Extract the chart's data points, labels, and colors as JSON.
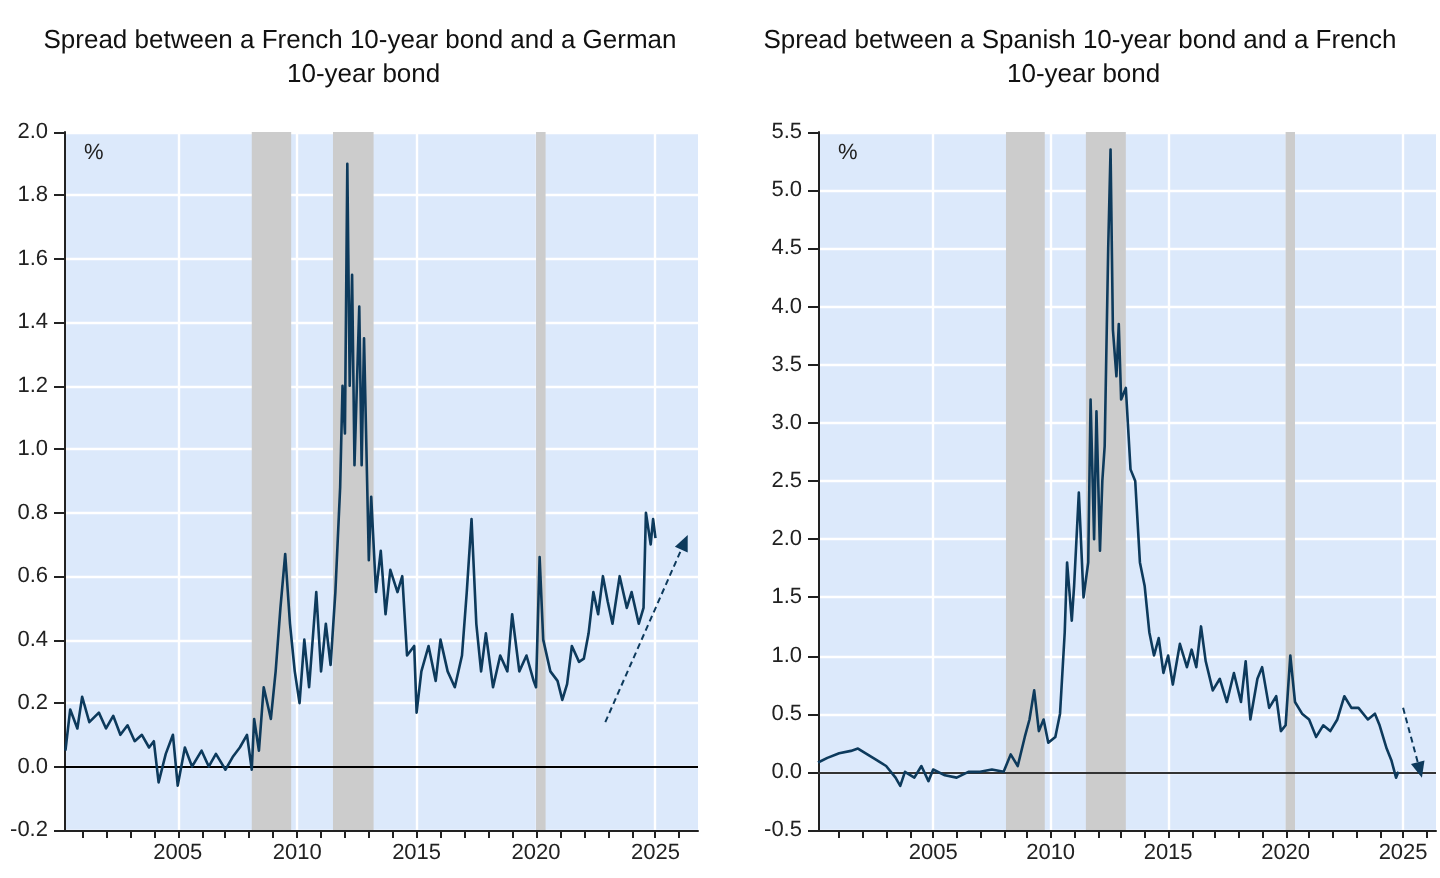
{
  "chart_data": [
    {
      "type": "line",
      "title": "Spread between a French 10-year bond and a German 10-year bond",
      "ylabel": "%",
      "xlim": [
        2000.24,
        2026.78
      ],
      "xticks": [
        {
          "value": 2001,
          "label": null
        },
        {
          "value": 2002,
          "label": null
        },
        {
          "value": 2003,
          "label": null
        },
        {
          "value": 2004,
          "label": null
        },
        2005,
        {
          "value": 2006,
          "label": null
        },
        {
          "value": 2007,
          "label": null
        },
        {
          "value": 2008,
          "label": null
        },
        {
          "value": 2009,
          "label": null
        },
        2010,
        {
          "value": 2011,
          "label": null
        },
        {
          "value": 2012,
          "label": null
        },
        {
          "value": 2013,
          "label": null
        },
        {
          "value": 2014,
          "label": null
        },
        2015,
        {
          "value": 2016,
          "label": null
        },
        {
          "value": 2017,
          "label": null
        },
        {
          "value": 2018,
          "label": null
        },
        {
          "value": 2019,
          "label": null
        },
        2020,
        {
          "value": 2021,
          "label": null
        },
        {
          "value": 2022,
          "label": null
        },
        {
          "value": 2023,
          "label": null
        },
        {
          "value": 2024,
          "label": null
        },
        2025,
        {
          "value": 2026,
          "label": null
        }
      ],
      "ylim": [
        -0.2,
        2.0
      ],
      "yticks": [
        -0.2,
        {
          "value": 0,
          "label": "0.0"
        },
        0.2,
        0.4,
        0.6,
        0.8,
        {
          "value": 1,
          "label": "1.0"
        },
        1.2,
        1.4,
        1.6,
        1.8,
        {
          "value": 2,
          "label": "2.0"
        }
      ],
      "grid": true,
      "marker": "none",
      "ref_lines": [
        {
          "axis": "y",
          "value": 0,
          "color": "#000000"
        }
      ],
      "bands": [
        {
          "axis": "x",
          "from": 2008.1,
          "to": 2009.75,
          "color": "#cccccc"
        },
        {
          "axis": "x",
          "from": 2011.5,
          "to": 2013.2,
          "color": "#cccccc"
        },
        {
          "axis": "x",
          "from": 2020.0,
          "to": 2020.4,
          "color": "#cccccc"
        }
      ],
      "series": [
        {
          "color": "#0d3a5c",
          "line_style": "solid",
          "x": [
            2000.3,
            2000.5,
            2000.8,
            2001.0,
            2001.3,
            2001.7,
            2002.0,
            2002.3,
            2002.6,
            2002.9,
            2003.2,
            2003.5,
            2003.8,
            2004.0,
            2004.2,
            2004.5,
            2004.8,
            2005.0,
            2005.3,
            2005.6,
            2006.0,
            2006.3,
            2006.6,
            2007.0,
            2007.3,
            2007.6,
            2007.9,
            2008.1,
            2008.2,
            2008.4,
            2008.6,
            2008.9,
            2009.1,
            2009.3,
            2009.5,
            2009.7,
            2009.9,
            2010.1,
            2010.3,
            2010.5,
            2010.8,
            2011.0,
            2011.2,
            2011.4,
            2011.6,
            2011.8,
            2011.9,
            2012.0,
            2012.1,
            2012.2,
            2012.3,
            2012.4,
            2012.6,
            2012.7,
            2012.8,
            2013.0,
            2013.1,
            2013.3,
            2013.5,
            2013.7,
            2013.9,
            2014.2,
            2014.4,
            2014.6,
            2014.9,
            2015.0,
            2015.2,
            2015.5,
            2015.8,
            2016.0,
            2016.3,
            2016.6,
            2016.9,
            2017.1,
            2017.3,
            2017.5,
            2017.7,
            2017.9,
            2018.2,
            2018.5,
            2018.8,
            2019.0,
            2019.3,
            2019.6,
            2019.9,
            2020.0,
            2020.15,
            2020.3,
            2020.6,
            2020.9,
            2021.1,
            2021.3,
            2021.5,
            2021.8,
            2022.0,
            2022.2,
            2022.4,
            2022.6,
            2022.8,
            2023.0,
            2023.2,
            2023.5,
            2023.8,
            2024.0,
            2024.3,
            2024.5,
            2024.6,
            2024.8,
            2024.9,
            2025.0
          ],
          "values": [
            0.05,
            0.18,
            0.12,
            0.22,
            0.14,
            0.17,
            0.12,
            0.16,
            0.1,
            0.13,
            0.08,
            0.1,
            0.06,
            0.08,
            -0.05,
            0.04,
            0.1,
            -0.06,
            0.06,
            0.0,
            0.05,
            0.0,
            0.04,
            -0.01,
            0.03,
            0.06,
            0.1,
            -0.01,
            0.15,
            0.05,
            0.25,
            0.15,
            0.3,
            0.5,
            0.67,
            0.45,
            0.3,
            0.2,
            0.4,
            0.25,
            0.55,
            0.3,
            0.45,
            0.32,
            0.55,
            0.88,
            1.2,
            1.05,
            1.9,
            1.2,
            1.55,
            0.95,
            1.45,
            0.95,
            1.35,
            0.65,
            0.85,
            0.55,
            0.68,
            0.48,
            0.62,
            0.55,
            0.6,
            0.35,
            0.38,
            0.17,
            0.3,
            0.38,
            0.27,
            0.4,
            0.3,
            0.25,
            0.35,
            0.55,
            0.78,
            0.45,
            0.3,
            0.42,
            0.25,
            0.35,
            0.3,
            0.48,
            0.3,
            0.35,
            0.27,
            0.25,
            0.66,
            0.4,
            0.3,
            0.27,
            0.21,
            0.26,
            0.38,
            0.33,
            0.34,
            0.42,
            0.55,
            0.48,
            0.6,
            0.52,
            0.45,
            0.6,
            0.5,
            0.55,
            0.45,
            0.5,
            0.8,
            0.7,
            0.78,
            0.72
          ]
        }
      ]
    },
    {
      "type": "line",
      "title": "Spread between a Spanish 10-year bond and a French 10-year bond",
      "ylabel": "%",
      "xlim": [
        2000.1,
        2026.4
      ],
      "xticks": [
        {
          "value": 2001,
          "label": null
        },
        {
          "value": 2002,
          "label": null
        },
        {
          "value": 2003,
          "label": null
        },
        {
          "value": 2004,
          "label": null
        },
        2005,
        {
          "value": 2006,
          "label": null
        },
        {
          "value": 2007,
          "label": null
        },
        {
          "value": 2008,
          "label": null
        },
        {
          "value": 2009,
          "label": null
        },
        2010,
        {
          "value": 2011,
          "label": null
        },
        {
          "value": 2012,
          "label": null
        },
        {
          "value": 2013,
          "label": null
        },
        {
          "value": 2014,
          "label": null
        },
        2015,
        {
          "value": 2016,
          "label": null
        },
        {
          "value": 2017,
          "label": null
        },
        {
          "value": 2018,
          "label": null
        },
        {
          "value": 2019,
          "label": null
        },
        2020,
        {
          "value": 2021,
          "label": null
        },
        {
          "value": 2022,
          "label": null
        },
        {
          "value": 2023,
          "label": null
        },
        {
          "value": 2024,
          "label": null
        },
        2025,
        {
          "value": 2026,
          "label": null
        }
      ],
      "ylim": [
        -0.5,
        5.5
      ],
      "yticks": [
        -0.5,
        {
          "value": 0,
          "label": "0.0"
        },
        0.5,
        {
          "value": 1,
          "label": "1.0"
        },
        1.5,
        {
          "value": 2,
          "label": "2.0"
        },
        2.5,
        {
          "value": 3,
          "label": "3.0"
        },
        3.5,
        {
          "value": 4,
          "label": "4.0"
        },
        4.5,
        {
          "value": 5,
          "label": "5.0"
        },
        5.5
      ],
      "grid": true,
      "marker": "none",
      "ref_lines": [
        {
          "axis": "y",
          "value": 0,
          "color": "#333333"
        }
      ],
      "bands": [
        {
          "axis": "x",
          "from": 2008.1,
          "to": 2009.75,
          "color": "#cccccc"
        },
        {
          "axis": "x",
          "from": 2011.5,
          "to": 2013.2,
          "color": "#cccccc"
        },
        {
          "axis": "x",
          "from": 2020.0,
          "to": 2020.4,
          "color": "#cccccc"
        }
      ],
      "series": [
        {
          "color": "#0d3a5c",
          "line_style": "solid",
          "x": [
            2000.1,
            2000.5,
            2001.0,
            2001.5,
            2001.8,
            2002.2,
            2002.6,
            2003.0,
            2003.4,
            2003.6,
            2003.8,
            2004.2,
            2004.5,
            2004.8,
            2005.0,
            2005.5,
            2006.0,
            2006.5,
            2007.0,
            2007.5,
            2008.0,
            2008.3,
            2008.6,
            2008.9,
            2009.1,
            2009.3,
            2009.5,
            2009.7,
            2009.9,
            2010.2,
            2010.4,
            2010.6,
            2010.7,
            2010.9,
            2011.0,
            2011.2,
            2011.4,
            2011.6,
            2011.7,
            2011.85,
            2011.95,
            2012.1,
            2012.2,
            2012.3,
            2012.45,
            2012.55,
            2012.65,
            2012.8,
            2012.9,
            2013.0,
            2013.2,
            2013.4,
            2013.6,
            2013.8,
            2014.0,
            2014.2,
            2014.4,
            2014.6,
            2014.8,
            2015.0,
            2015.2,
            2015.5,
            2015.8,
            2016.0,
            2016.2,
            2016.4,
            2016.6,
            2016.9,
            2017.2,
            2017.5,
            2017.8,
            2018.1,
            2018.3,
            2018.5,
            2018.8,
            2019.0,
            2019.3,
            2019.6,
            2019.8,
            2020.0,
            2020.2,
            2020.4,
            2020.7,
            2021.0,
            2021.3,
            2021.6,
            2021.9,
            2022.2,
            2022.5,
            2022.8,
            2023.1,
            2023.5,
            2023.8,
            2024.0,
            2024.3,
            2024.5,
            2024.7,
            2024.8
          ],
          "values": [
            0.08,
            0.12,
            0.16,
            0.18,
            0.2,
            0.15,
            0.1,
            0.05,
            -0.05,
            -0.12,
            0.0,
            -0.05,
            0.05,
            -0.08,
            0.02,
            -0.03,
            -0.05,
            0.0,
            0.0,
            0.02,
            0.0,
            0.15,
            0.05,
            0.3,
            0.45,
            0.7,
            0.35,
            0.45,
            0.25,
            0.3,
            0.5,
            1.2,
            1.8,
            1.3,
            1.6,
            2.4,
            1.5,
            1.8,
            3.2,
            2.0,
            3.1,
            1.9,
            2.5,
            2.8,
            4.5,
            5.35,
            3.8,
            3.4,
            3.85,
            3.2,
            3.3,
            2.6,
            2.5,
            1.8,
            1.6,
            1.2,
            1.0,
            1.15,
            0.85,
            1.0,
            0.75,
            1.1,
            0.9,
            1.05,
            0.9,
            1.25,
            0.95,
            0.7,
            0.8,
            0.6,
            0.85,
            0.6,
            0.95,
            0.45,
            0.8,
            0.9,
            0.55,
            0.65,
            0.35,
            0.4,
            1.0,
            0.6,
            0.5,
            0.45,
            0.3,
            0.4,
            0.35,
            0.45,
            0.65,
            0.55,
            0.55,
            0.45,
            0.5,
            0.4,
            0.2,
            0.1,
            -0.05,
            0.0
          ]
        }
      ]
    }
  ]
}
